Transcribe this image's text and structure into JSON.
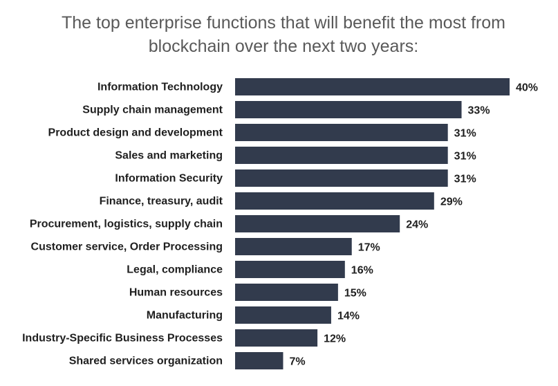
{
  "chart_data": {
    "type": "barh",
    "title": "The top enterprise functions that will benefit the most from blockchain over the next two years:",
    "categories": [
      "Information Technology",
      "Supply chain management",
      "Product design and development",
      "Sales and marketing",
      "Information Security",
      "Finance, treasury, audit",
      "Procurement, logistics, supply chain",
      "Customer service, Order Processing",
      "Legal, compliance",
      "Human resources",
      "Manufacturing",
      "Industry-Specific Business Processes",
      "Shared services organization"
    ],
    "values": [
      40,
      33,
      31,
      31,
      31,
      29,
      24,
      17,
      16,
      15,
      14,
      12,
      7
    ],
    "value_labels": [
      "40%",
      "33%",
      "31%",
      "31%",
      "31%",
      "29%",
      "24%",
      "17%",
      "16%",
      "15%",
      "14%",
      "12%",
      "7%"
    ],
    "color": "#323b4d"
  }
}
